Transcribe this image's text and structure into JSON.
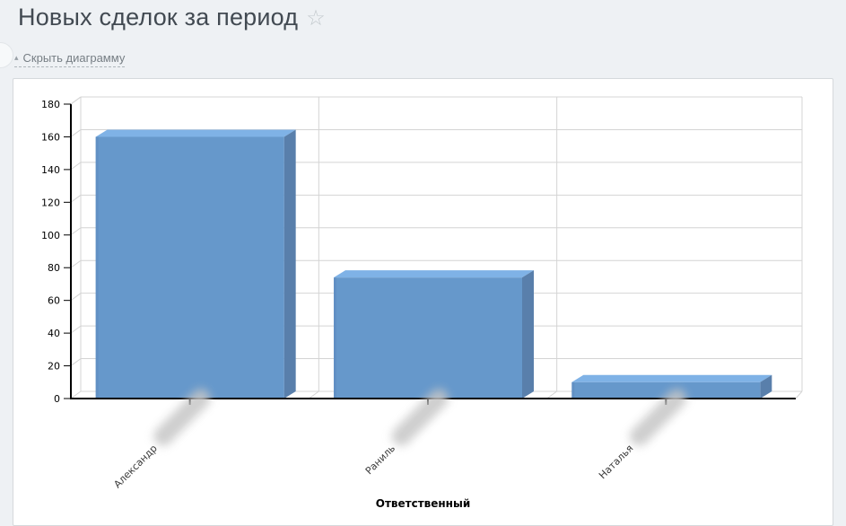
{
  "page": {
    "title": "Новых сделок за период",
    "toggle_chart_label": "Скрыть диаграмму",
    "icons": {
      "favorite": "☆",
      "collapse_arrow": "▴"
    }
  },
  "chart_data": {
    "type": "bar",
    "style": "3d-column",
    "title": "",
    "categories": [
      {
        "label": "Александр",
        "surname_redacted": true
      },
      {
        "label": "Раниль",
        "surname_redacted": true
      },
      {
        "label": "Наталья",
        "surname_redacted": true
      }
    ],
    "values": [
      160,
      74,
      10
    ],
    "xlabel": "Ответственный",
    "ylabel": "",
    "ylim": [
      0,
      180
    ],
    "ytick_step": 20,
    "grid": true,
    "legend": false,
    "colors": {
      "bar_front": "#6698cb",
      "bar_top": "#7fb2e6",
      "bar_side": "#597fab",
      "bar_left_edge": "#5d8bbf",
      "grid": "#d4d4d4",
      "axis": "#000000",
      "tick_label": "#000000",
      "category_label": "#3a3a3a",
      "redaction_blur": "#c6c6c6"
    }
  }
}
